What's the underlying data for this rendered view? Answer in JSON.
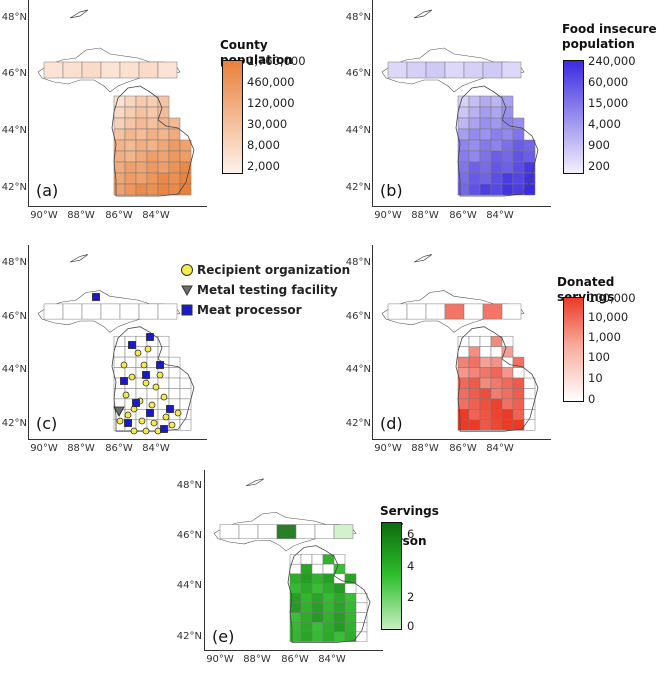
{
  "figure": {
    "lat_ticks": [
      "48°N",
      "46°N",
      "44°N",
      "42°N"
    ],
    "lon_ticks": [
      "90°W",
      "88°W",
      "86°W",
      "84°W"
    ]
  },
  "chart_data": [
    {
      "type": "choropleth",
      "panel": "(a)",
      "legend_title": "County population",
      "legend_labels": [
        "1,760,000",
        "460,000",
        "120,000",
        "30,000",
        "8,000",
        "2,000"
      ],
      "color_low": "#fdf2ea",
      "color_high": "#e9803a",
      "values_level": [
        2,
        2,
        2,
        2,
        2,
        2,
        3,
        2,
        2,
        3,
        2,
        2,
        2,
        2,
        2,
        2,
        3,
        3,
        2,
        2,
        3,
        3,
        3,
        2,
        2,
        3,
        2,
        3,
        3,
        3,
        3,
        3,
        3,
        3,
        4,
        4,
        3,
        3,
        4,
        3,
        4,
        3,
        4,
        4,
        4,
        5,
        4,
        4,
        4,
        5,
        4,
        4,
        5,
        4,
        5,
        6,
        4
      ]
    },
    {
      "type": "choropleth",
      "panel": "(b)",
      "legend_title": "Food insecure population",
      "legend_labels": [
        "240,000",
        "60,000",
        "15,000",
        "4,000",
        "900",
        "200"
      ],
      "color_low": "#f4f0fb",
      "color_high": "#3b2be0",
      "values_level": [
        2,
        2,
        2,
        2,
        2,
        2,
        3,
        2,
        2,
        3,
        2,
        2,
        2,
        2,
        2,
        2,
        3,
        3,
        2,
        2,
        3,
        3,
        3,
        2,
        2,
        3,
        2,
        3,
        3,
        3,
        3,
        3,
        3,
        3,
        4,
        4,
        3,
        3,
        4,
        3,
        4,
        3,
        4,
        4,
        4,
        5,
        4,
        4,
        4,
        5,
        4,
        4,
        5,
        4,
        5,
        6,
        4
      ]
    },
    {
      "type": "point-map",
      "panel": "(c)",
      "legend": [
        {
          "label": "Recipient organization",
          "shape": "circle",
          "color": "#f5ea4a"
        },
        {
          "label": "Metal testing facility",
          "shape": "triangle",
          "color": "#6e6e6e"
        },
        {
          "label": "Meat processor",
          "shape": "square",
          "color": "#1a1acd"
        }
      ]
    },
    {
      "type": "choropleth",
      "panel": "(d)",
      "legend_title": "Donated servings",
      "legend_labels": [
        "100,000",
        "10,000",
        "1,000",
        "100",
        "10",
        "0"
      ],
      "color_low": "#ffffff",
      "color_high": "#ec3a27"
    },
    {
      "type": "choropleth",
      "panel": "(e)",
      "legend_title": "Servings per person",
      "legend_labels": [
        "6",
        "4",
        "2",
        "0"
      ],
      "legend_values": [
        6,
        4,
        2,
        0
      ],
      "color_low": "#c8eec0",
      "color_high": "#0c6b0c"
    }
  ]
}
